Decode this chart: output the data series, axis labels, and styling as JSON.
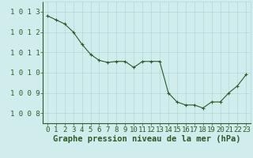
{
  "x": [
    0,
    1,
    2,
    3,
    4,
    5,
    6,
    7,
    8,
    9,
    10,
    11,
    12,
    13,
    14,
    15,
    16,
    17,
    18,
    19,
    20,
    21,
    22,
    23
  ],
  "y": [
    1012.8,
    1012.6,
    1012.4,
    1012.0,
    1011.4,
    1010.9,
    1010.6,
    1010.5,
    1010.55,
    1010.55,
    1010.25,
    1010.55,
    1010.55,
    1010.55,
    1009.0,
    1008.55,
    1008.4,
    1008.4,
    1008.25,
    1008.55,
    1008.55,
    1009.0,
    1009.35,
    1009.9
  ],
  "ylim": [
    1007.5,
    1013.5
  ],
  "yticks": [
    1008,
    1009,
    1010,
    1011,
    1012,
    1013
  ],
  "xlim": [
    -0.5,
    23.5
  ],
  "xticks": [
    0,
    1,
    2,
    3,
    4,
    5,
    6,
    7,
    8,
    9,
    10,
    11,
    12,
    13,
    14,
    15,
    16,
    17,
    18,
    19,
    20,
    21,
    22,
    23
  ],
  "line_color": "#2d5a27",
  "marker_color": "#2d5a27",
  "bg_color": "#d0ecec",
  "grid_color": "#b0d8d8",
  "xlabel": "Graphe pression niveau de la mer (hPa)",
  "xlabel_color": "#2d5a27",
  "tick_color": "#2d5a27",
  "label_color": "#2d5a27",
  "font_size": 6.5,
  "xlabel_fontsize": 7.5
}
